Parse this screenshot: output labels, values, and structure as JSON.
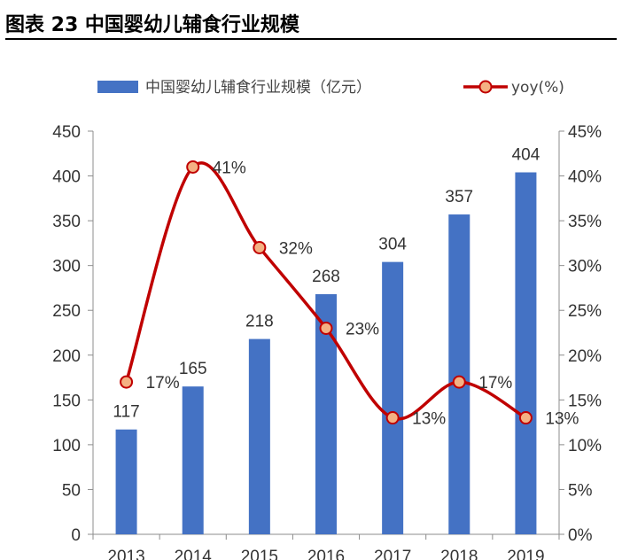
{
  "figure": {
    "title": "图表 23 中国婴幼儿辅食行业规模"
  },
  "chart_data": {
    "type": "bar",
    "categories": [
      "2013",
      "2014",
      "2015",
      "2016",
      "2017",
      "2018",
      "2019"
    ],
    "series": [
      {
        "name": "中国婴幼儿辅食行业规模（亿元）",
        "type": "bar",
        "axis": "left",
        "values": [
          117,
          165,
          218,
          268,
          304,
          357,
          404
        ],
        "labels": [
          "117",
          "165",
          "218",
          "268",
          "304",
          "357",
          "404"
        ],
        "color": "#4472C4"
      },
      {
        "name": "yoy(%)",
        "type": "line",
        "axis": "right",
        "values": [
          17,
          41,
          32,
          23,
          13,
          17,
          13
        ],
        "labels": [
          "17%",
          "41%",
          "32%",
          "23%",
          "13%",
          "17%",
          "13%"
        ],
        "color": "#C00000",
        "marker_color": "#F4B183"
      }
    ],
    "y_left": {
      "min": 0,
      "max": 450,
      "step": 50,
      "tick_labels": [
        "0",
        "50",
        "100",
        "150",
        "200",
        "250",
        "300",
        "350",
        "400",
        "450"
      ]
    },
    "y_right": {
      "min": 0,
      "max": 45,
      "step": 5,
      "tick_labels": [
        "0%",
        "5%",
        "10%",
        "15%",
        "20%",
        "25%",
        "30%",
        "35%",
        "40%",
        "45%"
      ]
    },
    "grid": false,
    "legend_position": "top"
  }
}
